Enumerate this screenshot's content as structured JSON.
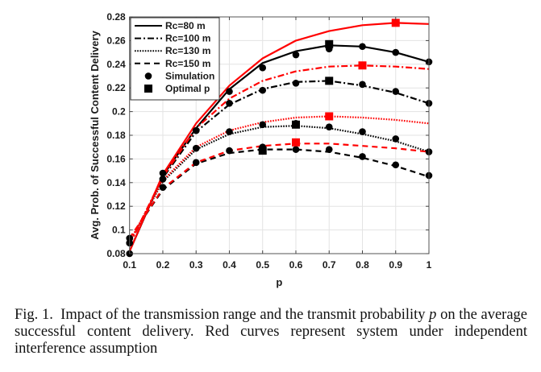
{
  "chart_data": {
    "type": "line",
    "title": "",
    "xlabel": "p",
    "ylabel": "Avg. Prob. of Successful Content Delivery",
    "xlim": [
      0.1,
      1
    ],
    "ylim": [
      0.08,
      0.28
    ],
    "grid": true,
    "legend_position": "top-left",
    "x_ticks": [
      "0.1",
      "0.2",
      "0.3",
      "0.4",
      "0.5",
      "0.6",
      "0.7",
      "0.8",
      "0.9",
      "1"
    ],
    "x_tick_values": [
      0.1,
      0.2,
      0.3,
      0.4,
      0.5,
      0.6,
      0.7,
      0.8,
      0.9,
      1.0
    ],
    "y_ticks": [
      "0.08",
      "0.1",
      "0.12",
      "0.14",
      "0.16",
      "0.18",
      "0.2",
      "0.22",
      "0.24",
      "0.26",
      "0.28"
    ],
    "y_tick_values": [
      0.08,
      0.1,
      0.12,
      0.14,
      0.16,
      0.18,
      0.2,
      0.22,
      0.24,
      0.26,
      0.28
    ],
    "x": [
      0.1,
      0.2,
      0.3,
      0.4,
      0.5,
      0.6,
      0.7,
      0.8,
      0.9,
      1.0
    ],
    "series": [
      {
        "name": "Rc=80 m",
        "model": "analysis",
        "color": "#000000",
        "style": "solid",
        "values": [
          0.082,
          0.146,
          0.186,
          0.219,
          0.241,
          0.251,
          0.256,
          0.255,
          0.25,
          0.242
        ]
      },
      {
        "name": "Rc=100 m",
        "model": "analysis",
        "color": "#000000",
        "style": "dashdot",
        "values": [
          0.088,
          0.144,
          0.183,
          0.206,
          0.219,
          0.225,
          0.226,
          0.222,
          0.216,
          0.207
        ]
      },
      {
        "name": "Rc=130 m",
        "model": "analysis",
        "color": "#000000",
        "style": "dotted",
        "values": [
          0.09,
          0.141,
          0.168,
          0.181,
          0.187,
          0.188,
          0.186,
          0.181,
          0.175,
          0.166
        ]
      },
      {
        "name": "Rc=150 m",
        "model": "analysis",
        "color": "#000000",
        "style": "dashed",
        "values": [
          0.093,
          0.134,
          0.156,
          0.165,
          0.168,
          0.168,
          0.166,
          0.161,
          0.154,
          0.145
        ]
      },
      {
        "name": "Rc=80 m (independent interference)",
        "model": "independent",
        "color": "#ff0000",
        "style": "solid",
        "values": [
          0.082,
          0.147,
          0.19,
          0.222,
          0.245,
          0.26,
          0.268,
          0.273,
          0.275,
          0.274
        ]
      },
      {
        "name": "Rc=100 m (independent interference)",
        "model": "independent",
        "color": "#ff0000",
        "style": "dashdot",
        "values": [
          0.088,
          0.145,
          0.186,
          0.211,
          0.226,
          0.234,
          0.238,
          0.239,
          0.238,
          0.236
        ]
      },
      {
        "name": "Rc=130 m (independent interference)",
        "model": "independent",
        "color": "#ff0000",
        "style": "dotted",
        "values": [
          0.09,
          0.142,
          0.17,
          0.184,
          0.191,
          0.195,
          0.196,
          0.195,
          0.193,
          0.19
        ]
      },
      {
        "name": "Rc=150 m (independent interference)",
        "model": "independent",
        "color": "#ff0000",
        "style": "dashed",
        "values": [
          0.093,
          0.135,
          0.157,
          0.167,
          0.171,
          0.173,
          0.173,
          0.171,
          0.169,
          0.166
        ]
      }
    ],
    "simulation_points": [
      {
        "series": "Rc=80 m",
        "values": [
          0.08,
          0.148,
          0.184,
          0.217,
          0.237,
          0.248,
          0.253,
          0.255,
          0.25,
          0.242
        ]
      },
      {
        "series": "Rc=100 m",
        "values": [
          0.089,
          0.143,
          0.184,
          0.207,
          0.218,
          0.224,
          0.226,
          0.223,
          0.217,
          0.207
        ]
      },
      {
        "series": "Rc=130 m",
        "values": [
          0.093,
          0.143,
          0.169,
          0.183,
          0.189,
          0.19,
          0.187,
          0.183,
          0.177,
          0.166
        ]
      },
      {
        "series": "Rc=150 m",
        "values": [
          0.089,
          0.136,
          0.157,
          0.167,
          0.17,
          0.168,
          0.168,
          0.162,
          0.155,
          0.146
        ]
      }
    ],
    "optimal_points": [
      {
        "series": "Rc=80 m",
        "color": "#000000",
        "p": 0.7,
        "value": 0.257
      },
      {
        "series": "Rc=100 m",
        "color": "#000000",
        "p": 0.7,
        "value": 0.226
      },
      {
        "series": "Rc=130 m",
        "color": "#000000",
        "p": 0.6,
        "value": 0.189
      },
      {
        "series": "Rc=150 m",
        "color": "#000000",
        "p": 0.5,
        "value": 0.167
      },
      {
        "series": "Rc=80 m (independent interference)",
        "color": "#ff0000",
        "p": 0.9,
        "value": 0.275
      },
      {
        "series": "Rc=100 m (independent interference)",
        "color": "#ff0000",
        "p": 0.8,
        "value": 0.239
      },
      {
        "series": "Rc=130 m (independent interference)",
        "color": "#ff0000",
        "p": 0.7,
        "value": 0.196
      },
      {
        "series": "Rc=150 m (independent interference)",
        "color": "#ff0000",
        "p": 0.6,
        "value": 0.174
      }
    ],
    "legend": [
      {
        "label": "Rc=80 m",
        "marker": "solid-line"
      },
      {
        "label": "Rc=100 m",
        "marker": "dashdot-line"
      },
      {
        "label": "Rc=130 m",
        "marker": "dotted-line"
      },
      {
        "label": "Rc=150 m",
        "marker": "dashed-line"
      },
      {
        "label": "Simulation",
        "marker": "circle"
      },
      {
        "label": "Optimal p",
        "marker": "square"
      }
    ]
  },
  "caption": {
    "prefix": "Fig. 1.",
    "text_before_var": "Impact of the transmission range and the transmit probability",
    "variable": "p",
    "text_after_var": "on the average successful content delivery. Red curves represent system under independent interference assumption"
  }
}
